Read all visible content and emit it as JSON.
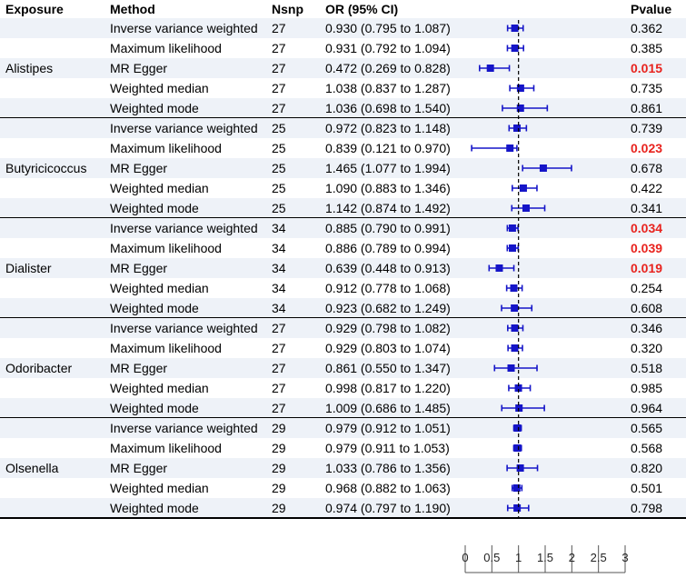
{
  "chart_data": {
    "type": "forest",
    "headers": {
      "exposure": "Exposure",
      "method": "Method",
      "nsnp": "Nsnp",
      "or": "OR (95% CI)",
      "pvalue": "Pvalue"
    },
    "x_axis": {
      "ticks": [
        "0",
        "0.5",
        "1",
        "1.5",
        "2",
        "2.5",
        "3"
      ],
      "range": [
        0,
        3
      ],
      "reference_line": 1
    },
    "colors": {
      "marker": "#1515c8",
      "significant": "#e8231e",
      "stripe": "#eef2f8"
    },
    "groups": [
      {
        "exposure": "Alistipes",
        "rows": [
          {
            "method": "Inverse variance weighted",
            "nsnp": "27",
            "or_text": "0.930 (0.795 to 1.087)",
            "or": 0.93,
            "lo": 0.795,
            "hi": 1.087,
            "p": "0.362",
            "sig": false
          },
          {
            "method": "Maximum likelihood",
            "nsnp": "27",
            "or_text": "0.931 (0.792 to 1.094)",
            "or": 0.931,
            "lo": 0.792,
            "hi": 1.094,
            "p": "0.385",
            "sig": false
          },
          {
            "method": "MR Egger",
            "nsnp": "27",
            "or_text": "0.472 (0.269 to 0.828)",
            "or": 0.472,
            "lo": 0.269,
            "hi": 0.828,
            "p": "0.015",
            "sig": true
          },
          {
            "method": "Weighted median",
            "nsnp": "27",
            "or_text": "1.038 (0.837 to 1.287)",
            "or": 1.038,
            "lo": 0.837,
            "hi": 1.287,
            "p": "0.735",
            "sig": false
          },
          {
            "method": "Weighted mode",
            "nsnp": "27",
            "or_text": "1.036 (0.698 to 1.540)",
            "or": 1.036,
            "lo": 0.698,
            "hi": 1.54,
            "p": "0.861",
            "sig": false
          }
        ]
      },
      {
        "exposure": "Butyricicoccus",
        "rows": [
          {
            "method": "Inverse variance weighted",
            "nsnp": "25",
            "or_text": "0.972 (0.823 to 1.148)",
            "or": 0.972,
            "lo": 0.823,
            "hi": 1.148,
            "p": "0.739",
            "sig": false
          },
          {
            "method": "Maximum likelihood",
            "nsnp": "25",
            "or_text": "0.839 (0.121 to 0.970)",
            "or": 0.839,
            "lo": 0.121,
            "hi": 0.97,
            "p": "0.023",
            "sig": true
          },
          {
            "method": "MR Egger",
            "nsnp": "25",
            "or_text": "1.465 (1.077 to 1.994)",
            "or": 1.465,
            "lo": 1.077,
            "hi": 1.994,
            "p": "0.678",
            "sig": false
          },
          {
            "method": "Weighted median",
            "nsnp": "25",
            "or_text": "1.090 (0.883 to 1.346)",
            "or": 1.09,
            "lo": 0.883,
            "hi": 1.346,
            "p": "0.422",
            "sig": false
          },
          {
            "method": "Weighted mode",
            "nsnp": "25",
            "or_text": "1.142 (0.874 to 1.492)",
            "or": 1.142,
            "lo": 0.874,
            "hi": 1.492,
            "p": "0.341",
            "sig": false
          }
        ]
      },
      {
        "exposure": "Dialister",
        "rows": [
          {
            "method": "Inverse variance weighted",
            "nsnp": "34",
            "or_text": "0.885 (0.790 to 0.991)",
            "or": 0.885,
            "lo": 0.79,
            "hi": 0.991,
            "p": "0.034",
            "sig": true
          },
          {
            "method": "Maximum likelihood",
            "nsnp": "34",
            "or_text": "0.886 (0.789 to 0.994)",
            "or": 0.886,
            "lo": 0.789,
            "hi": 0.994,
            "p": "0.039",
            "sig": true
          },
          {
            "method": "MR Egger",
            "nsnp": "34",
            "or_text": "0.639 (0.448 to 0.913)",
            "or": 0.639,
            "lo": 0.448,
            "hi": 0.913,
            "p": "0.019",
            "sig": true
          },
          {
            "method": "Weighted median",
            "nsnp": "34",
            "or_text": "0.912 (0.778 to 1.068)",
            "or": 0.912,
            "lo": 0.778,
            "hi": 1.068,
            "p": "0.254",
            "sig": false
          },
          {
            "method": "Weighted mode",
            "nsnp": "34",
            "or_text": "0.923 (0.682 to 1.249)",
            "or": 0.923,
            "lo": 0.682,
            "hi": 1.249,
            "p": "0.608",
            "sig": false
          }
        ]
      },
      {
        "exposure": "Odoribacter",
        "rows": [
          {
            "method": "Inverse variance weighted",
            "nsnp": "27",
            "or_text": "0.929 (0.798 to 1.082)",
            "or": 0.929,
            "lo": 0.798,
            "hi": 1.082,
            "p": "0.346",
            "sig": false
          },
          {
            "method": "Maximum likelihood",
            "nsnp": "27",
            "or_text": "0.929 (0.803 to 1.074)",
            "or": 0.929,
            "lo": 0.803,
            "hi": 1.074,
            "p": "0.320",
            "sig": false
          },
          {
            "method": "MR Egger",
            "nsnp": "27",
            "or_text": "0.861 (0.550 to 1.347)",
            "or": 0.861,
            "lo": 0.55,
            "hi": 1.347,
            "p": "0.518",
            "sig": false
          },
          {
            "method": "Weighted median",
            "nsnp": "27",
            "or_text": "0.998 (0.817 to 1.220)",
            "or": 0.998,
            "lo": 0.817,
            "hi": 1.22,
            "p": "0.985",
            "sig": false
          },
          {
            "method": "Weighted mode",
            "nsnp": "27",
            "or_text": "1.009 (0.686 to 1.485)",
            "or": 1.009,
            "lo": 0.686,
            "hi": 1.485,
            "p": "0.964",
            "sig": false
          }
        ]
      },
      {
        "exposure": "Olsenella",
        "rows": [
          {
            "method": "Inverse variance weighted",
            "nsnp": "29",
            "or_text": "0.979 (0.912 to 1.051)",
            "or": 0.979,
            "lo": 0.912,
            "hi": 1.051,
            "p": "0.565",
            "sig": false
          },
          {
            "method": "Maximum likelihood",
            "nsnp": "29",
            "or_text": "0.979 (0.911 to 1.053)",
            "or": 0.979,
            "lo": 0.911,
            "hi": 1.053,
            "p": "0.568",
            "sig": false
          },
          {
            "method": "MR Egger",
            "nsnp": "29",
            "or_text": "1.033 (0.786 to 1.356)",
            "or": 1.033,
            "lo": 0.786,
            "hi": 1.356,
            "p": "0.820",
            "sig": false
          },
          {
            "method": "Weighted median",
            "nsnp": "29",
            "or_text": "0.968 (0.882 to 1.063)",
            "or": 0.968,
            "lo": 0.882,
            "hi": 1.063,
            "p": "0.501",
            "sig": false
          },
          {
            "method": "Weighted mode",
            "nsnp": "29",
            "or_text": "0.974 (0.797 to 1.190)",
            "or": 0.974,
            "lo": 0.797,
            "hi": 1.19,
            "p": "0.798",
            "sig": false
          }
        ]
      }
    ]
  }
}
